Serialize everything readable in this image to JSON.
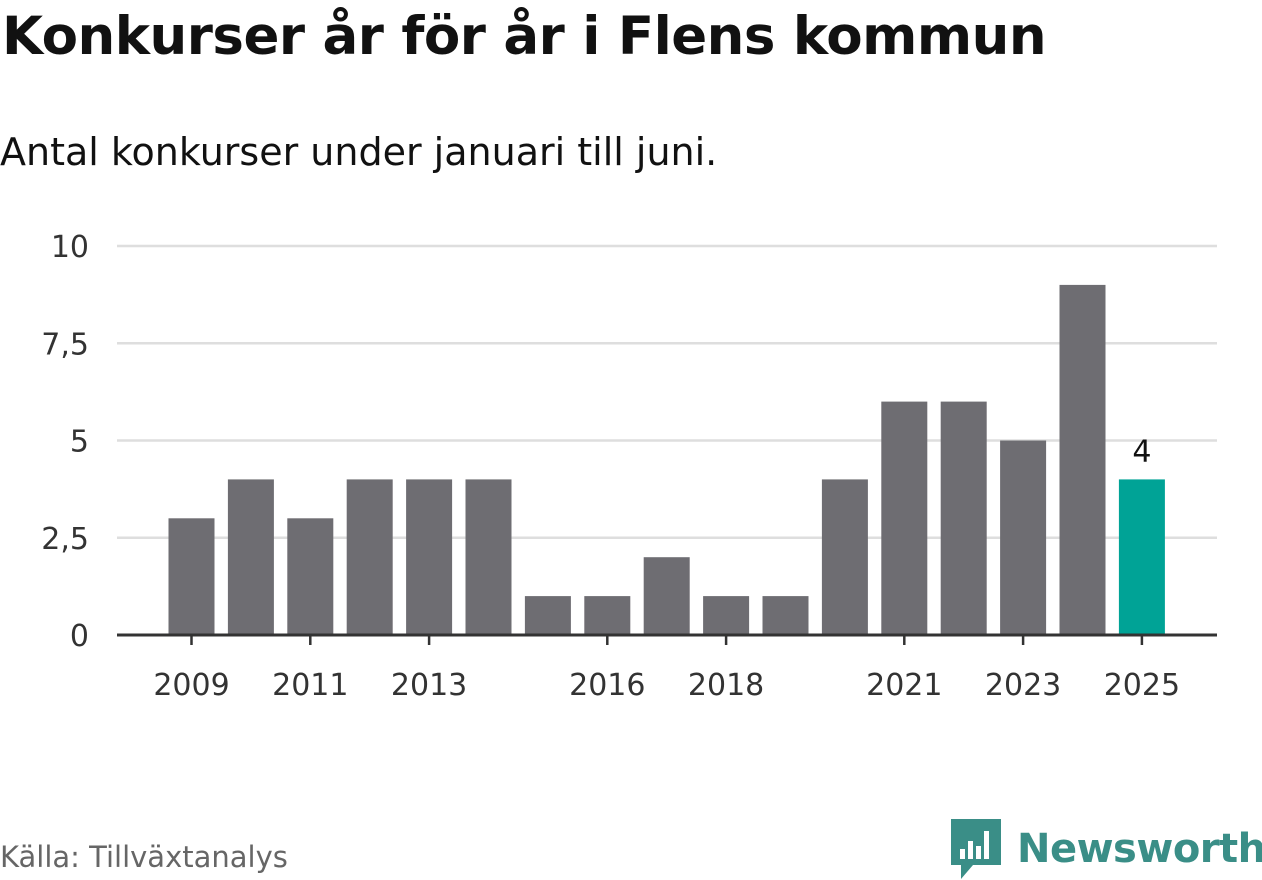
{
  "header": {
    "title": "Konkurser år för år i Flens kommun",
    "subtitle": "Antal konkurser under januari till juni."
  },
  "footer": {
    "source": "Källa: Tillväxtanalys",
    "brand": "Newsworthy",
    "brand_icon": "newsworthy-logo-icon"
  },
  "colors": {
    "bar": "#6e6d72",
    "highlight": "#00a396",
    "grid": "#dedede",
    "axis": "#333333",
    "brand": "#3a8e87"
  },
  "chart_data": {
    "type": "bar",
    "categories": [
      "2009",
      "2010",
      "2011",
      "2012",
      "2013",
      "2014",
      "2015",
      "2016",
      "2017",
      "2018",
      "2019",
      "2020",
      "2021",
      "2022",
      "2023",
      "2024",
      "2025"
    ],
    "values": [
      3,
      4,
      3,
      4,
      4,
      4,
      1,
      1,
      2,
      1,
      1,
      4,
      6,
      6,
      5,
      9,
      4
    ],
    "highlight_index": 16,
    "data_labels": [
      {
        "index": 16,
        "text": "4"
      }
    ],
    "x_tick_labels": [
      "2009",
      "2011",
      "2013",
      "2016",
      "2018",
      "2021",
      "2023",
      "2025"
    ],
    "y_ticks": [
      0,
      2.5,
      5,
      7.5,
      10
    ],
    "y_tick_labels": [
      "0",
      "2,5",
      "5",
      "7,5",
      "10"
    ],
    "ylim": [
      0,
      10
    ],
    "grid": true,
    "legend": "none"
  }
}
